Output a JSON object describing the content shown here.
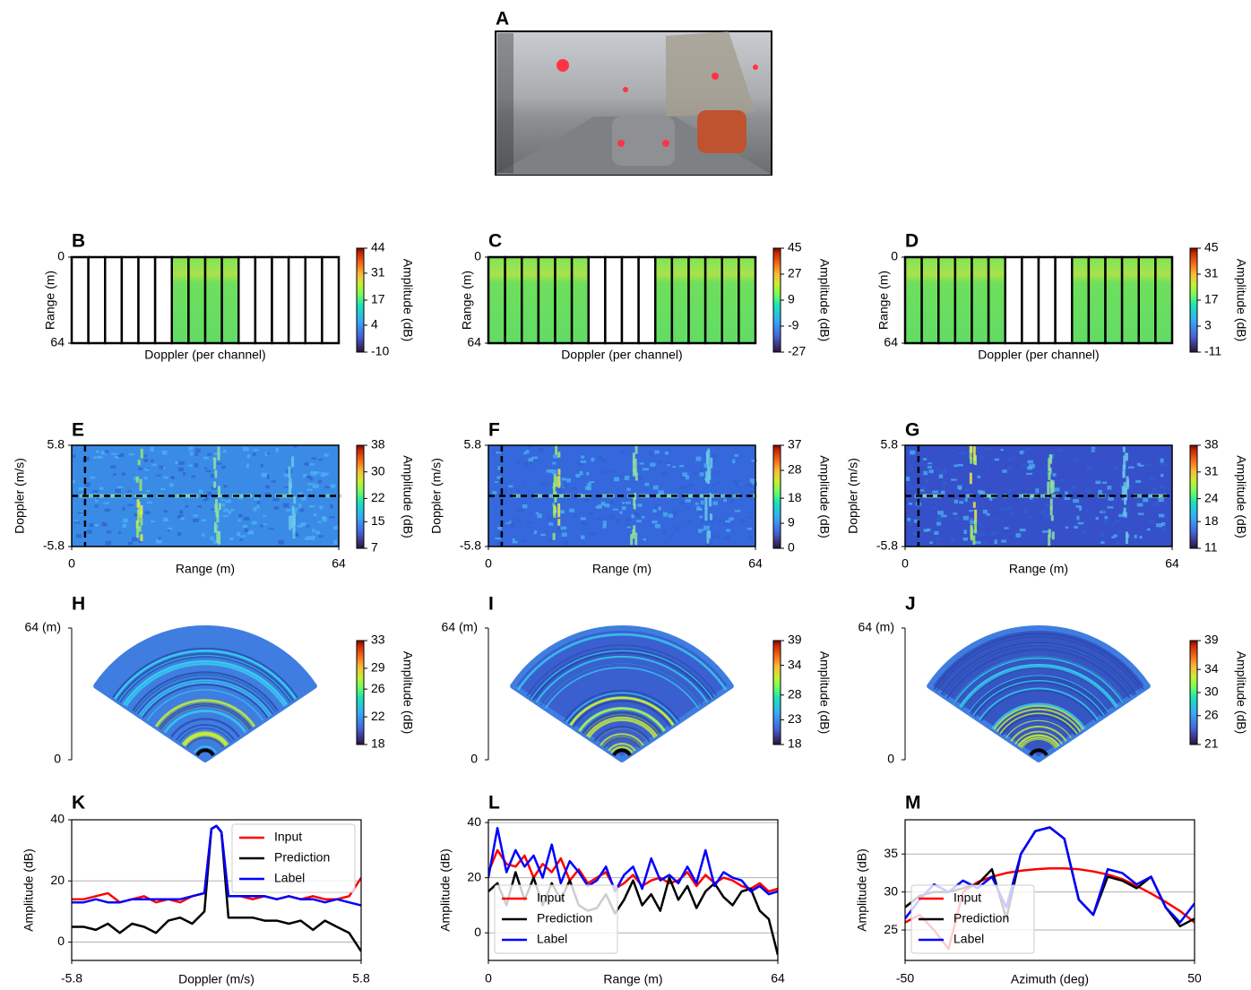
{
  "chart_data": [
    {
      "type": "image",
      "panel": "A"
    },
    {
      "type": "heatmap",
      "panel": "B",
      "xlabel": "Doppler (per channel)",
      "ylabel": "Range (m)",
      "ylim": [
        0,
        64
      ],
      "yticks": [
        0,
        64
      ],
      "y_inverted": true,
      "channels": [
        0,
        0,
        0,
        0,
        0,
        0,
        1,
        1,
        1,
        1,
        0,
        0,
        0,
        0,
        0,
        0
      ],
      "colorbar": {
        "label": "Amplitude (dB)",
        "lim": [
          -10,
          44
        ],
        "ticks": [
          -10,
          4,
          17,
          31,
          44
        ]
      }
    },
    {
      "type": "heatmap",
      "panel": "C",
      "xlabel": "Doppler (per channel)",
      "ylabel": "Range (m)",
      "ylim": [
        0,
        64
      ],
      "yticks": [
        0,
        64
      ],
      "y_inverted": true,
      "channels": [
        1,
        1,
        1,
        1,
        1,
        1,
        0,
        0,
        0,
        0,
        1,
        1,
        1,
        1,
        1,
        1
      ],
      "colorbar": {
        "label": "Amplitude (dB)",
        "lim": [
          -27,
          45
        ],
        "ticks": [
          -27,
          -9,
          9,
          27,
          45
        ]
      }
    },
    {
      "type": "heatmap",
      "panel": "D",
      "xlabel": "Doppler (per channel)",
      "ylabel": "Range (m)",
      "ylim": [
        0,
        64
      ],
      "yticks": [
        0,
        64
      ],
      "y_inverted": true,
      "channels": [
        1,
        1,
        1,
        1,
        1,
        1,
        0,
        0,
        0,
        0,
        1,
        1,
        1,
        1,
        1,
        1
      ],
      "colorbar": {
        "label": "Amplitude (dB)",
        "lim": [
          -11,
          45
        ],
        "ticks": [
          -11,
          3,
          17,
          31,
          45
        ]
      }
    },
    {
      "type": "heatmap",
      "panel": "E",
      "xlabel": "Range (m)",
      "ylabel": "Doppler (m/s)",
      "xlim": [
        0,
        64
      ],
      "xticks": [
        0,
        64
      ],
      "ylim": [
        -5.8,
        5.8
      ],
      "yticks": [
        -5.8,
        5.8
      ],
      "marker_x": 3.2,
      "marker_y": 0,
      "colorbar": {
        "label": "Amplitude (dB)",
        "lim": [
          7,
          38
        ],
        "ticks": [
          7,
          15,
          22,
          30,
          38
        ]
      }
    },
    {
      "type": "heatmap",
      "panel": "F",
      "xlabel": "Range (m)",
      "ylabel": "Doppler (m/s)",
      "xlim": [
        0,
        64
      ],
      "xticks": [
        0,
        64
      ],
      "ylim": [
        -5.8,
        5.8
      ],
      "yticks": [
        -5.8,
        5.8
      ],
      "marker_x": 3.2,
      "marker_y": 0,
      "colorbar": {
        "label": "Amplitude (dB)",
        "lim": [
          0,
          37
        ],
        "ticks": [
          0,
          9,
          18,
          28,
          37
        ]
      }
    },
    {
      "type": "heatmap",
      "panel": "G",
      "xlabel": "Range (m)",
      "ylabel": "Doppler (m/s)",
      "xlim": [
        0,
        64
      ],
      "xticks": [
        0,
        64
      ],
      "ylim": [
        -5.8,
        5.8
      ],
      "yticks": [
        -5.8,
        5.8
      ],
      "marker_x": 3.2,
      "marker_y": 0,
      "colorbar": {
        "label": "Amplitude (dB)",
        "lim": [
          11,
          38
        ],
        "ticks": [
          11,
          18,
          24,
          31,
          38
        ]
      }
    },
    {
      "type": "polar",
      "panel": "H",
      "ylim": [
        0,
        64
      ],
      "yticks": [
        0,
        {
          "value": 64,
          "label": "64 (m)"
        }
      ],
      "colorbar": {
        "label": "Amplitude (dB)",
        "lim": [
          18,
          33
        ],
        "ticks": [
          18,
          22,
          26,
          29,
          33
        ]
      }
    },
    {
      "type": "polar",
      "panel": "I",
      "ylim": [
        0,
        64
      ],
      "yticks": [
        0,
        {
          "value": 64,
          "label": "64 (m)"
        }
      ],
      "colorbar": {
        "label": "Amplitude (dB)",
        "lim": [
          18,
          39
        ],
        "ticks": [
          18,
          23,
          28,
          34,
          39
        ]
      }
    },
    {
      "type": "polar",
      "panel": "J",
      "ylim": [
        0,
        64
      ],
      "yticks": [
        0,
        {
          "value": 64,
          "label": "64 (m)"
        }
      ],
      "colorbar": {
        "label": "Amplitude (dB)",
        "lim": [
          21,
          39
        ],
        "ticks": [
          21,
          26,
          30,
          34,
          39
        ]
      }
    },
    {
      "type": "line",
      "panel": "K",
      "xlabel": "Doppler (m/s)",
      "ylabel": "Amplitude (dB)",
      "xlim": [
        -5.8,
        5.8
      ],
      "xticks": [
        -5.8,
        5.8
      ],
      "ylim": [
        -6,
        40
      ],
      "yticks": [
        0,
        20,
        40
      ],
      "grid": true,
      "legend": "upper right",
      "x": [
        -5.8,
        -5.32,
        -4.83,
        -4.35,
        -3.87,
        -3.38,
        -2.9,
        -2.42,
        -1.93,
        -1.45,
        -0.97,
        -0.48,
        -0.2,
        0,
        0.2,
        0.48,
        0.97,
        1.45,
        1.93,
        2.42,
        2.9,
        3.38,
        3.87,
        4.35,
        4.83,
        5.32,
        5.8
      ],
      "series": [
        {
          "name": "Input",
          "color": "#ff0000",
          "values": [
            14,
            14,
            15,
            16,
            13,
            14,
            15,
            13,
            14,
            13,
            15,
            16,
            37,
            38,
            36,
            15,
            15,
            14,
            15,
            14,
            15,
            14,
            15,
            14,
            14,
            15,
            21
          ]
        },
        {
          "name": "Prediction",
          "color": "#000000",
          "values": [
            5,
            5,
            4,
            6,
            3,
            6,
            5,
            3,
            7,
            8,
            6,
            10,
            37,
            38,
            36,
            8,
            8,
            8,
            7,
            7,
            6,
            7,
            4,
            7,
            5,
            3,
            -3
          ]
        },
        {
          "name": "Label",
          "color": "#0000ff",
          "values": [
            13,
            13,
            14,
            13,
            13,
            14,
            14,
            14,
            14,
            14,
            15,
            16,
            37,
            38,
            36,
            15,
            15,
            15,
            15,
            14,
            15,
            14,
            14,
            13,
            14,
            13,
            12
          ]
        }
      ]
    },
    {
      "type": "line",
      "panel": "L",
      "xlabel": "Range (m)",
      "ylabel": "Amplitude (dB)",
      "xlim": [
        0,
        64
      ],
      "xticks": [
        0,
        64
      ],
      "ylim": [
        -10,
        41
      ],
      "yticks": [
        0,
        20,
        40
      ],
      "grid": true,
      "legend": "lower left",
      "x": [
        0,
        2,
        4,
        6,
        8,
        10,
        12,
        14,
        16,
        18,
        20,
        22,
        24,
        26,
        28,
        30,
        32,
        34,
        36,
        38,
        40,
        42,
        44,
        46,
        48,
        50,
        52,
        54,
        56,
        58,
        60,
        62,
        64
      ],
      "series": [
        {
          "name": "Input",
          "color": "#ff0000",
          "values": [
            22,
            30,
            25,
            24,
            28,
            20,
            25,
            22,
            27,
            19,
            23,
            18,
            20,
            22,
            16,
            18,
            21,
            17,
            19,
            20,
            18,
            19,
            22,
            17,
            21,
            18,
            20,
            19,
            17,
            16,
            18,
            15,
            16
          ]
        },
        {
          "name": "Prediction",
          "color": "#000000",
          "values": [
            15,
            18,
            10,
            22,
            12,
            20,
            10,
            18,
            12,
            19,
            10,
            8,
            9,
            14,
            7,
            12,
            19,
            10,
            14,
            8,
            20,
            12,
            17,
            9,
            15,
            18,
            13,
            10,
            15,
            16,
            8,
            5,
            -8
          ]
        },
        {
          "name": "Label",
          "color": "#0000ff",
          "values": [
            20,
            38,
            22,
            30,
            24,
            28,
            20,
            32,
            18,
            26,
            22,
            17,
            19,
            24,
            15,
            21,
            24,
            16,
            27,
            19,
            21,
            18,
            24,
            18,
            30,
            17,
            22,
            20,
            19,
            15,
            17,
            14,
            15
          ]
        }
      ]
    },
    {
      "type": "line",
      "panel": "M",
      "xlabel": "Azimuth (deg)",
      "ylabel": "Amplitude (dB)",
      "xlim": [
        -50,
        50
      ],
      "xticks": [
        -50,
        50
      ],
      "ylim": [
        21,
        39.5
      ],
      "yticks": [
        25,
        30,
        35
      ],
      "grid": true,
      "legend": "lower left",
      "x": [
        -50,
        -45,
        -40,
        -35,
        -30,
        -25,
        -20,
        -15,
        -10,
        -5,
        0,
        5,
        10,
        15,
        20,
        25,
        30,
        35,
        40,
        45,
        50
      ],
      "series": [
        {
          "name": "Input",
          "color": "#ff0000",
          "values": [
            26,
            27,
            25,
            22.5,
            30,
            31.3,
            32,
            32.5,
            32.8,
            33,
            33.1,
            33.1,
            33,
            32.7,
            32.3,
            31.7,
            30.8,
            29.8,
            28.7,
            27.5,
            26
          ]
        },
        {
          "name": "Prediction",
          "color": "#000000",
          "values": [
            28,
            29.5,
            30,
            30,
            30.5,
            31,
            33,
            26.5,
            35,
            38,
            38.5,
            37,
            29,
            27,
            32,
            31.5,
            30.5,
            32,
            28,
            25.5,
            26.5
          ]
        },
        {
          "name": "Label",
          "color": "#0000ff",
          "values": [
            26.5,
            29,
            31,
            30,
            31.5,
            30.5,
            32,
            28,
            35,
            38,
            38.5,
            37,
            29,
            27,
            33,
            32.5,
            31,
            32,
            28,
            26,
            28.5
          ]
        }
      ]
    }
  ]
}
